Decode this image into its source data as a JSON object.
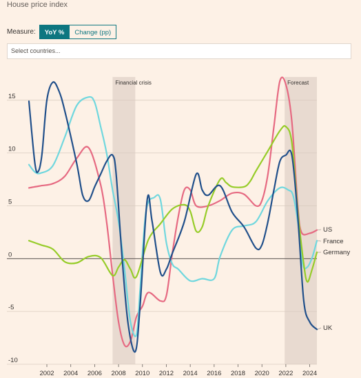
{
  "header": {
    "title": "House price index"
  },
  "measure": {
    "label": "Measure:",
    "options": [
      "YoY %",
      "Change (pp)"
    ],
    "selected": "YoY %"
  },
  "search": {
    "placeholder": "Select countries..."
  },
  "chart_data": {
    "type": "line",
    "title": "",
    "xlabel": "",
    "ylabel": "",
    "xlim": [
      2000.5,
      2024.6
    ],
    "ylim": [
      -10,
      17.2
    ],
    "y_ticks": [
      -10,
      -5,
      0,
      5,
      10,
      15
    ],
    "x_ticks": [
      2002,
      2004,
      2006,
      2008,
      2010,
      2012,
      2014,
      2016,
      2018,
      2020,
      2022,
      2024
    ],
    "grid": true,
    "zero_line": true,
    "shaded_periods": [
      {
        "label": "Financial crisis",
        "start": 2007.5,
        "end": 2009.4
      },
      {
        "label": "Forecast",
        "start": 2021.9,
        "end": 2024.6
      }
    ],
    "series": [
      {
        "name": "US",
        "color": "#e66981",
        "points": [
          [
            2000.5,
            6.7
          ],
          [
            2001.5,
            6.9
          ],
          [
            2002.5,
            7.1
          ],
          [
            2003.5,
            7.8
          ],
          [
            2004.5,
            9.5
          ],
          [
            2005.5,
            10.5
          ],
          [
            2006.5,
            7.0
          ],
          [
            2007.0,
            3.5
          ],
          [
            2007.5,
            -1.5
          ],
          [
            2008.0,
            -6.0
          ],
          [
            2008.5,
            -8.2
          ],
          [
            2009.0,
            -7.8
          ],
          [
            2009.5,
            -5.5
          ],
          [
            2010.0,
            -4.5
          ],
          [
            2010.5,
            -3.2
          ],
          [
            2011.5,
            -4.0
          ],
          [
            2012.0,
            -3.5
          ],
          [
            2012.5,
            0.5
          ],
          [
            2013.0,
            4.0
          ],
          [
            2013.5,
            6.5
          ],
          [
            2014.0,
            6.5
          ],
          [
            2014.5,
            5.0
          ],
          [
            2015.5,
            5.0
          ],
          [
            2016.5,
            5.5
          ],
          [
            2017.5,
            6.2
          ],
          [
            2018.5,
            6.1
          ],
          [
            2019.5,
            5.0
          ],
          [
            2020.0,
            5.5
          ],
          [
            2020.5,
            8.0
          ],
          [
            2021.0,
            12.5
          ],
          [
            2021.5,
            16.8
          ],
          [
            2022.0,
            16.5
          ],
          [
            2022.5,
            13.0
          ],
          [
            2023.0,
            5.0
          ],
          [
            2023.3,
            2.5
          ],
          [
            2024.0,
            2.4
          ],
          [
            2024.6,
            2.7
          ]
        ]
      },
      {
        "name": "France",
        "color": "#6fd7de",
        "points": [
          [
            2000.5,
            8.9
          ],
          [
            2001.0,
            8.2
          ],
          [
            2001.5,
            8.1
          ],
          [
            2002.5,
            8.8
          ],
          [
            2003.5,
            11.5
          ],
          [
            2004.5,
            14.5
          ],
          [
            2005.5,
            15.3
          ],
          [
            2006.0,
            14.8
          ],
          [
            2006.5,
            12.5
          ],
          [
            2007.0,
            10.0
          ],
          [
            2007.5,
            6.5
          ],
          [
            2008.0,
            3.5
          ],
          [
            2008.5,
            -1.0
          ],
          [
            2009.0,
            -6.0
          ],
          [
            2009.5,
            -7.2
          ],
          [
            2009.8,
            -3.0
          ],
          [
            2010.3,
            4.5
          ],
          [
            2011.0,
            5.8
          ],
          [
            2011.5,
            5.6
          ],
          [
            2012.0,
            1.5
          ],
          [
            2012.5,
            -0.5
          ],
          [
            2013.0,
            -1.0
          ],
          [
            2014.0,
            -2.1
          ],
          [
            2015.0,
            -1.9
          ],
          [
            2016.0,
            -1.9
          ],
          [
            2016.5,
            0.2
          ],
          [
            2017.5,
            2.7
          ],
          [
            2018.5,
            3.1
          ],
          [
            2019.5,
            3.5
          ],
          [
            2020.5,
            5.5
          ],
          [
            2021.5,
            6.7
          ],
          [
            2022.2,
            6.5
          ],
          [
            2022.6,
            6.0
          ],
          [
            2023.0,
            3.5
          ],
          [
            2023.4,
            -0.5
          ],
          [
            2023.8,
            -0.8
          ],
          [
            2024.2,
            0.1
          ],
          [
            2024.6,
            1.7
          ]
        ]
      },
      {
        "name": "Germany",
        "color": "#96cc28",
        "points": [
          [
            2000.5,
            1.7
          ],
          [
            2001.5,
            1.3
          ],
          [
            2002.5,
            0.9
          ],
          [
            2003.5,
            -0.3
          ],
          [
            2004.5,
            -0.4
          ],
          [
            2005.5,
            0.2
          ],
          [
            2006.5,
            0.1
          ],
          [
            2007.5,
            -1.6
          ],
          [
            2008.0,
            -0.8
          ],
          [
            2008.5,
            -0.1
          ],
          [
            2009.0,
            -1.0
          ],
          [
            2009.5,
            -1.7
          ],
          [
            2010.5,
            1.8
          ],
          [
            2011.5,
            3.3
          ],
          [
            2012.5,
            4.7
          ],
          [
            2013.5,
            5.1
          ],
          [
            2014.0,
            4.5
          ],
          [
            2014.5,
            2.6
          ],
          [
            2015.0,
            3.0
          ],
          [
            2015.5,
            5.0
          ],
          [
            2016.5,
            7.5
          ],
          [
            2017.0,
            7.2
          ],
          [
            2017.5,
            6.8
          ],
          [
            2018.5,
            6.8
          ],
          [
            2019.0,
            7.3
          ],
          [
            2019.5,
            8.3
          ],
          [
            2020.5,
            10.2
          ],
          [
            2021.5,
            12.1
          ],
          [
            2022.0,
            12.5
          ],
          [
            2022.5,
            11.0
          ],
          [
            2023.0,
            4.5
          ],
          [
            2023.5,
            -0.5
          ],
          [
            2023.8,
            -2.2
          ],
          [
            2024.2,
            -1.0
          ],
          [
            2024.6,
            0.6
          ]
        ]
      },
      {
        "name": "UK",
        "color": "#204f8a",
        "points": [
          [
            2000.5,
            14.9
          ],
          [
            2001.0,
            9.0
          ],
          [
            2001.3,
            8.3
          ],
          [
            2001.6,
            10.0
          ],
          [
            2002.0,
            15.0
          ],
          [
            2002.5,
            16.7
          ],
          [
            2003.0,
            15.9
          ],
          [
            2003.5,
            14.0
          ],
          [
            2004.5,
            9.0
          ],
          [
            2005.0,
            6.0
          ],
          [
            2005.5,
            5.5
          ],
          [
            2006.0,
            6.8
          ],
          [
            2006.5,
            8.0
          ],
          [
            2007.0,
            9.2
          ],
          [
            2007.5,
            9.8
          ],
          [
            2007.8,
            8.0
          ],
          [
            2008.3,
            0.0
          ],
          [
            2008.8,
            -6.2
          ],
          [
            2009.4,
            -8.8
          ],
          [
            2009.8,
            -4.5
          ],
          [
            2010.4,
            5.6
          ],
          [
            2010.8,
            3.6
          ],
          [
            2011.5,
            -1.3
          ],
          [
            2012.0,
            -1.0
          ],
          [
            2012.5,
            0.5
          ],
          [
            2013.5,
            3.5
          ],
          [
            2014.5,
            8.0
          ],
          [
            2015.0,
            6.5
          ],
          [
            2015.5,
            6.0
          ],
          [
            2016.5,
            6.9
          ],
          [
            2017.5,
            4.4
          ],
          [
            2018.5,
            3.0
          ],
          [
            2019.5,
            1.0
          ],
          [
            2020.0,
            1.3
          ],
          [
            2020.5,
            3.5
          ],
          [
            2021.0,
            6.5
          ],
          [
            2021.5,
            9.2
          ],
          [
            2022.0,
            9.8
          ],
          [
            2022.5,
            9.8
          ],
          [
            2023.0,
            4.0
          ],
          [
            2023.5,
            -4.0
          ],
          [
            2024.0,
            -6.0
          ],
          [
            2024.6,
            -6.7
          ]
        ]
      }
    ]
  }
}
